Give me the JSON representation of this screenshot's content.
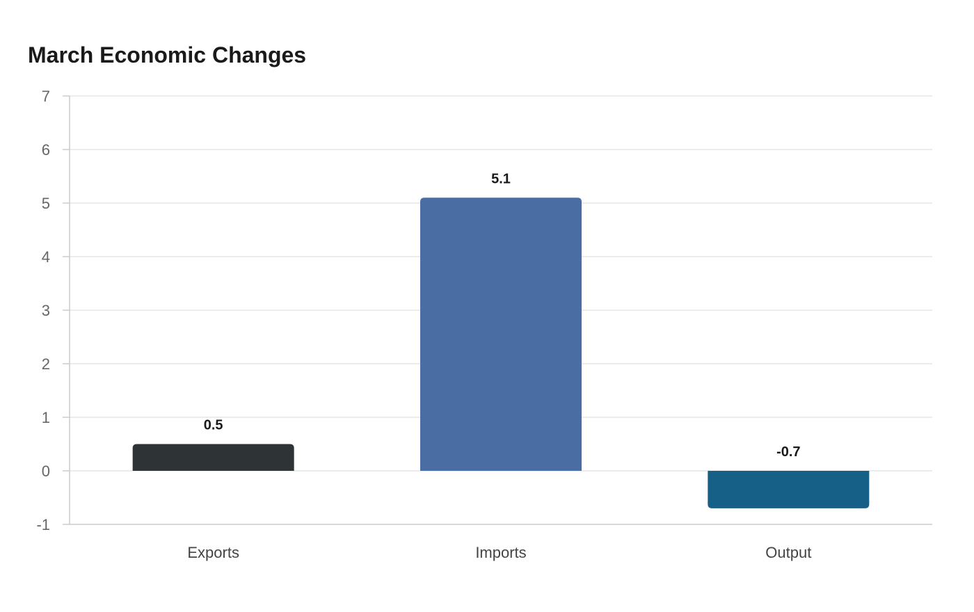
{
  "chart_data": {
    "type": "bar",
    "title": "March Economic Changes",
    "categories": [
      "Exports",
      "Imports",
      "Output"
    ],
    "values": [
      0.5,
      5.1,
      -0.7
    ],
    "value_labels": [
      "0.5",
      "5.1",
      "-0.7"
    ],
    "bar_colors": [
      "#2e3436",
      "#4a6ea3",
      "#165f87"
    ],
    "ylim": [
      -1,
      7
    ],
    "yticks": [
      "7",
      "6",
      "5",
      "4",
      "3",
      "2",
      "1",
      "0",
      "-1"
    ],
    "ytick_values": [
      7,
      6,
      5,
      4,
      3,
      2,
      1,
      0,
      -1
    ],
    "xlabel": "",
    "ylabel": "",
    "grid": true,
    "legend": "none"
  }
}
